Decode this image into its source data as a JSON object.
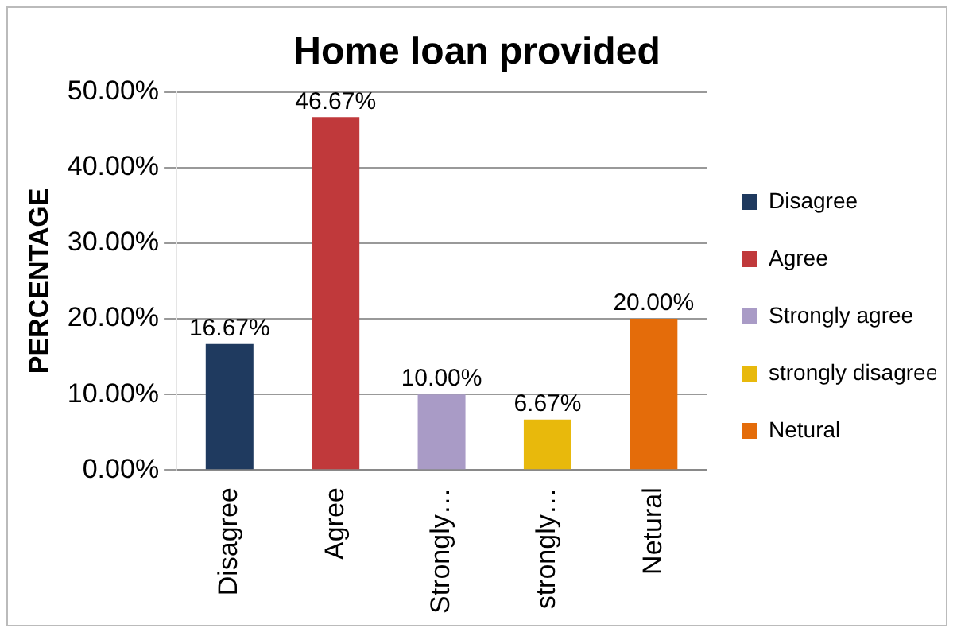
{
  "chart_data": {
    "type": "bar",
    "title": "Home loan provided",
    "ylabel": "PERCENTAGE",
    "categories": [
      "Disagree",
      "Agree",
      "Strongly…",
      "strongly…",
      "Netural"
    ],
    "series": [
      {
        "name": "Disagree",
        "color": "#1f3a5f",
        "values": [
          16.67,
          null,
          null,
          null,
          null
        ],
        "value_labels": [
          "16.67%",
          null,
          null,
          null,
          null
        ]
      },
      {
        "name": "Agree",
        "color": "#c0393b",
        "values": [
          null,
          46.67,
          null,
          null,
          null
        ],
        "value_labels": [
          null,
          "46.67%",
          null,
          null,
          null
        ]
      },
      {
        "name": "Strongly agree",
        "color": "#a99bc6",
        "values": [
          null,
          null,
          10.0,
          null,
          null
        ],
        "value_labels": [
          null,
          null,
          "10.00%",
          null,
          null
        ]
      },
      {
        "name": "strongly disagree",
        "color": "#e8b90c",
        "values": [
          null,
          null,
          null,
          6.67,
          null
        ],
        "value_labels": [
          null,
          null,
          null,
          "6.67%",
          null
        ]
      },
      {
        "name": "Netural",
        "color": "#e46c0a",
        "values": [
          null,
          null,
          null,
          null,
          20.0
        ],
        "value_labels": [
          null,
          null,
          null,
          null,
          "20.00%"
        ]
      }
    ],
    "ylim": [
      0,
      50
    ],
    "yticks": [
      {
        "value": 0,
        "label": "0.00%"
      },
      {
        "value": 10,
        "label": "10.00%"
      },
      {
        "value": 20,
        "label": "20.00%"
      },
      {
        "value": 30,
        "label": "30.00%"
      },
      {
        "value": 40,
        "label": "40.00%"
      },
      {
        "value": 50,
        "label": "50.00%"
      }
    ],
    "grid": "y",
    "legend": "right"
  }
}
